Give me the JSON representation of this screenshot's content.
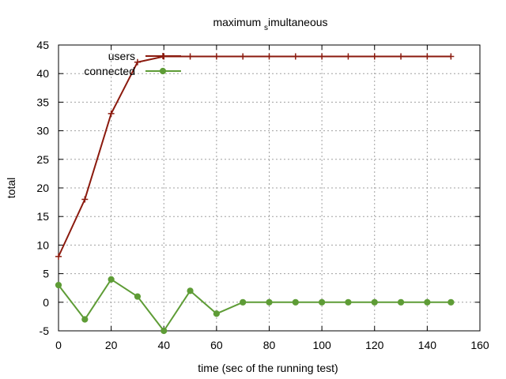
{
  "chart_data": {
    "type": "line",
    "title": "maximum simultaneous",
    "title_parts": [
      "maximum ",
      "s",
      "imultaneous"
    ],
    "xlabel": "time (sec of the running test)",
    "ylabel": "total",
    "xlim": [
      0,
      160
    ],
    "ylim": [
      -5,
      45
    ],
    "xticks": [
      0,
      20,
      40,
      60,
      80,
      100,
      120,
      140,
      160
    ],
    "yticks": [
      -5,
      0,
      5,
      10,
      15,
      20,
      25,
      30,
      35,
      40,
      45
    ],
    "grid": true,
    "legend_position": "top-left",
    "series": [
      {
        "name": "users",
        "color": "#8b1a0e",
        "marker": "plus",
        "x": [
          0,
          10,
          20,
          30,
          40,
          50,
          60,
          70,
          80,
          90,
          100,
          110,
          120,
          130,
          140,
          149
        ],
        "y": [
          8,
          18,
          33,
          42,
          43,
          43,
          43,
          43,
          43,
          43,
          43,
          43,
          43,
          43,
          43,
          43
        ]
      },
      {
        "name": "connected",
        "color": "#5e9c36",
        "marker": "circle",
        "x": [
          0,
          10,
          20,
          30,
          40,
          50,
          60,
          70,
          80,
          90,
          100,
          110,
          120,
          130,
          140,
          149
        ],
        "y": [
          3,
          -3,
          4,
          1,
          -5,
          2,
          -2,
          0,
          0,
          0,
          0,
          0,
          0,
          0,
          0,
          0
        ]
      }
    ]
  }
}
